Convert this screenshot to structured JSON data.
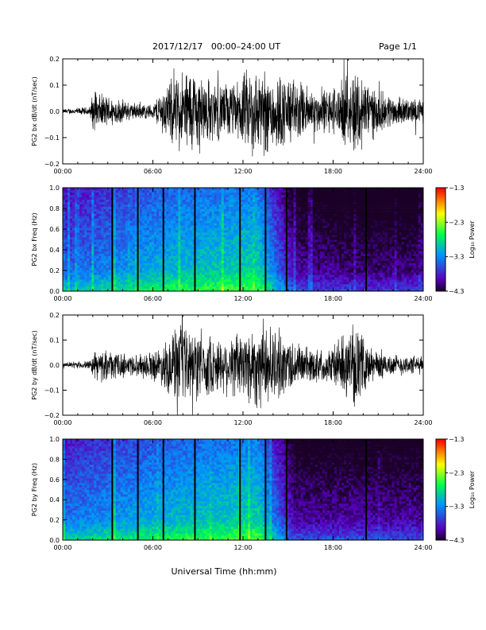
{
  "header": {
    "title": "2017/12/17   00:00–24:00 UT",
    "page": "Page 1/1"
  },
  "xlabel": "Universal Time (hh:mm)",
  "chart_data": [
    {
      "type": "line",
      "ylabel": "PG2 bx dB/dt (nT/sec)",
      "xlim": [
        0,
        24
      ],
      "ylim": [
        -0.2,
        0.2
      ],
      "x_ticks": [
        "00:00",
        "06:00",
        "12:00",
        "18:00",
        "24:00"
      ],
      "y_ticks": [
        "−0.2",
        "−0.1",
        "0.0",
        "0.1",
        "0.2"
      ],
      "envelope": [
        {
          "t": 0,
          "a": 0.01
        },
        {
          "t": 1.8,
          "a": 0.02
        },
        {
          "t": 2.0,
          "a": 0.08
        },
        {
          "t": 3.0,
          "a": 0.07
        },
        {
          "t": 4.5,
          "a": 0.04
        },
        {
          "t": 6.0,
          "a": 0.03
        },
        {
          "t": 6.5,
          "a": 0.09
        },
        {
          "t": 7.5,
          "a": 0.16
        },
        {
          "t": 8.5,
          "a": 0.2
        },
        {
          "t": 10,
          "a": 0.13
        },
        {
          "t": 11.5,
          "a": 0.12
        },
        {
          "t": 12.5,
          "a": 0.2
        },
        {
          "t": 14,
          "a": 0.18
        },
        {
          "t": 15.5,
          "a": 0.14
        },
        {
          "t": 17,
          "a": 0.09
        },
        {
          "t": 18.5,
          "a": 0.12
        },
        {
          "t": 19.5,
          "a": 0.2
        },
        {
          "t": 21,
          "a": 0.09
        },
        {
          "t": 22.5,
          "a": 0.06
        },
        {
          "t": 24,
          "a": 0.05
        }
      ]
    },
    {
      "type": "heatmap",
      "ylabel": "PG2 bx Freq (Hz)",
      "xlim": [
        0,
        24
      ],
      "ylim": [
        0,
        1
      ],
      "x_ticks": [
        "00:00",
        "06:00",
        "12:00",
        "18:00",
        "24:00"
      ],
      "y_ticks": [
        "0.0",
        "0.2",
        "0.4",
        "0.6",
        "0.8",
        "1.0"
      ],
      "colorbar": {
        "label": "Log₁₀ Power",
        "range": [
          -4.3,
          -1.3
        ],
        "ticks": [
          "−1.3",
          "−2.3",
          "−3.3",
          "−4.3"
        ]
      },
      "data_gaps_hours": [
        3.3,
        5.0,
        6.7,
        8.8,
        11.8,
        13.5,
        14.9,
        20.2
      ],
      "activity_profile": [
        {
          "t": 0,
          "level": -3.4
        },
        {
          "t": 6,
          "level": -3.0
        },
        {
          "t": 9,
          "level": -2.9
        },
        {
          "t": 13,
          "level": -2.8
        },
        {
          "t": 15.5,
          "level": -3.9
        },
        {
          "t": 19,
          "level": -4.0
        },
        {
          "t": 24,
          "level": -4.0
        }
      ]
    },
    {
      "type": "line",
      "ylabel": "PG2 by dB/dt (nT/sec)",
      "xlim": [
        0,
        24
      ],
      "ylim": [
        -0.2,
        0.2
      ],
      "x_ticks": [
        "00:00",
        "06:00",
        "12:00",
        "18:00",
        "24:00"
      ],
      "y_ticks": [
        "−0.2",
        "−0.1",
        "0.0",
        "0.1",
        "0.2"
      ],
      "envelope": [
        {
          "t": 0,
          "a": 0.01
        },
        {
          "t": 1.8,
          "a": 0.02
        },
        {
          "t": 2.2,
          "a": 0.07
        },
        {
          "t": 3.5,
          "a": 0.06
        },
        {
          "t": 5.0,
          "a": 0.05
        },
        {
          "t": 6.5,
          "a": 0.08
        },
        {
          "t": 7.5,
          "a": 0.18
        },
        {
          "t": 9,
          "a": 0.16
        },
        {
          "t": 10.5,
          "a": 0.12
        },
        {
          "t": 12,
          "a": 0.17
        },
        {
          "t": 13,
          "a": 0.2
        },
        {
          "t": 14.5,
          "a": 0.15
        },
        {
          "t": 16,
          "a": 0.09
        },
        {
          "t": 17.5,
          "a": 0.07
        },
        {
          "t": 19.5,
          "a": 0.18
        },
        {
          "t": 20.5,
          "a": 0.08
        },
        {
          "t": 22,
          "a": 0.05
        },
        {
          "t": 24,
          "a": 0.04
        }
      ]
    },
    {
      "type": "heatmap",
      "ylabel": "PG2 by Freq (Hz)",
      "xlim": [
        0,
        24
      ],
      "ylim": [
        0,
        1
      ],
      "x_ticks": [
        "00:00",
        "06:00",
        "12:00",
        "18:00",
        "24:00"
      ],
      "y_ticks": [
        "0.0",
        "0.2",
        "0.4",
        "0.6",
        "0.8",
        "1.0"
      ],
      "colorbar": {
        "label": "Log₁₀ Power",
        "range": [
          -4.3,
          -1.3
        ],
        "ticks": [
          "−1.3",
          "−2.3",
          "−3.3",
          "−4.3"
        ]
      },
      "data_gaps_hours": [
        3.3,
        5.0,
        6.7,
        8.8,
        11.8,
        13.5,
        14.9,
        20.2
      ],
      "activity_profile": [
        {
          "t": 0,
          "level": -3.3
        },
        {
          "t": 6,
          "level": -3.0
        },
        {
          "t": 9,
          "level": -2.9
        },
        {
          "t": 13,
          "level": -2.8
        },
        {
          "t": 15.5,
          "level": -3.9
        },
        {
          "t": 19,
          "level": -3.9
        },
        {
          "t": 24,
          "level": -3.9
        }
      ]
    }
  ]
}
